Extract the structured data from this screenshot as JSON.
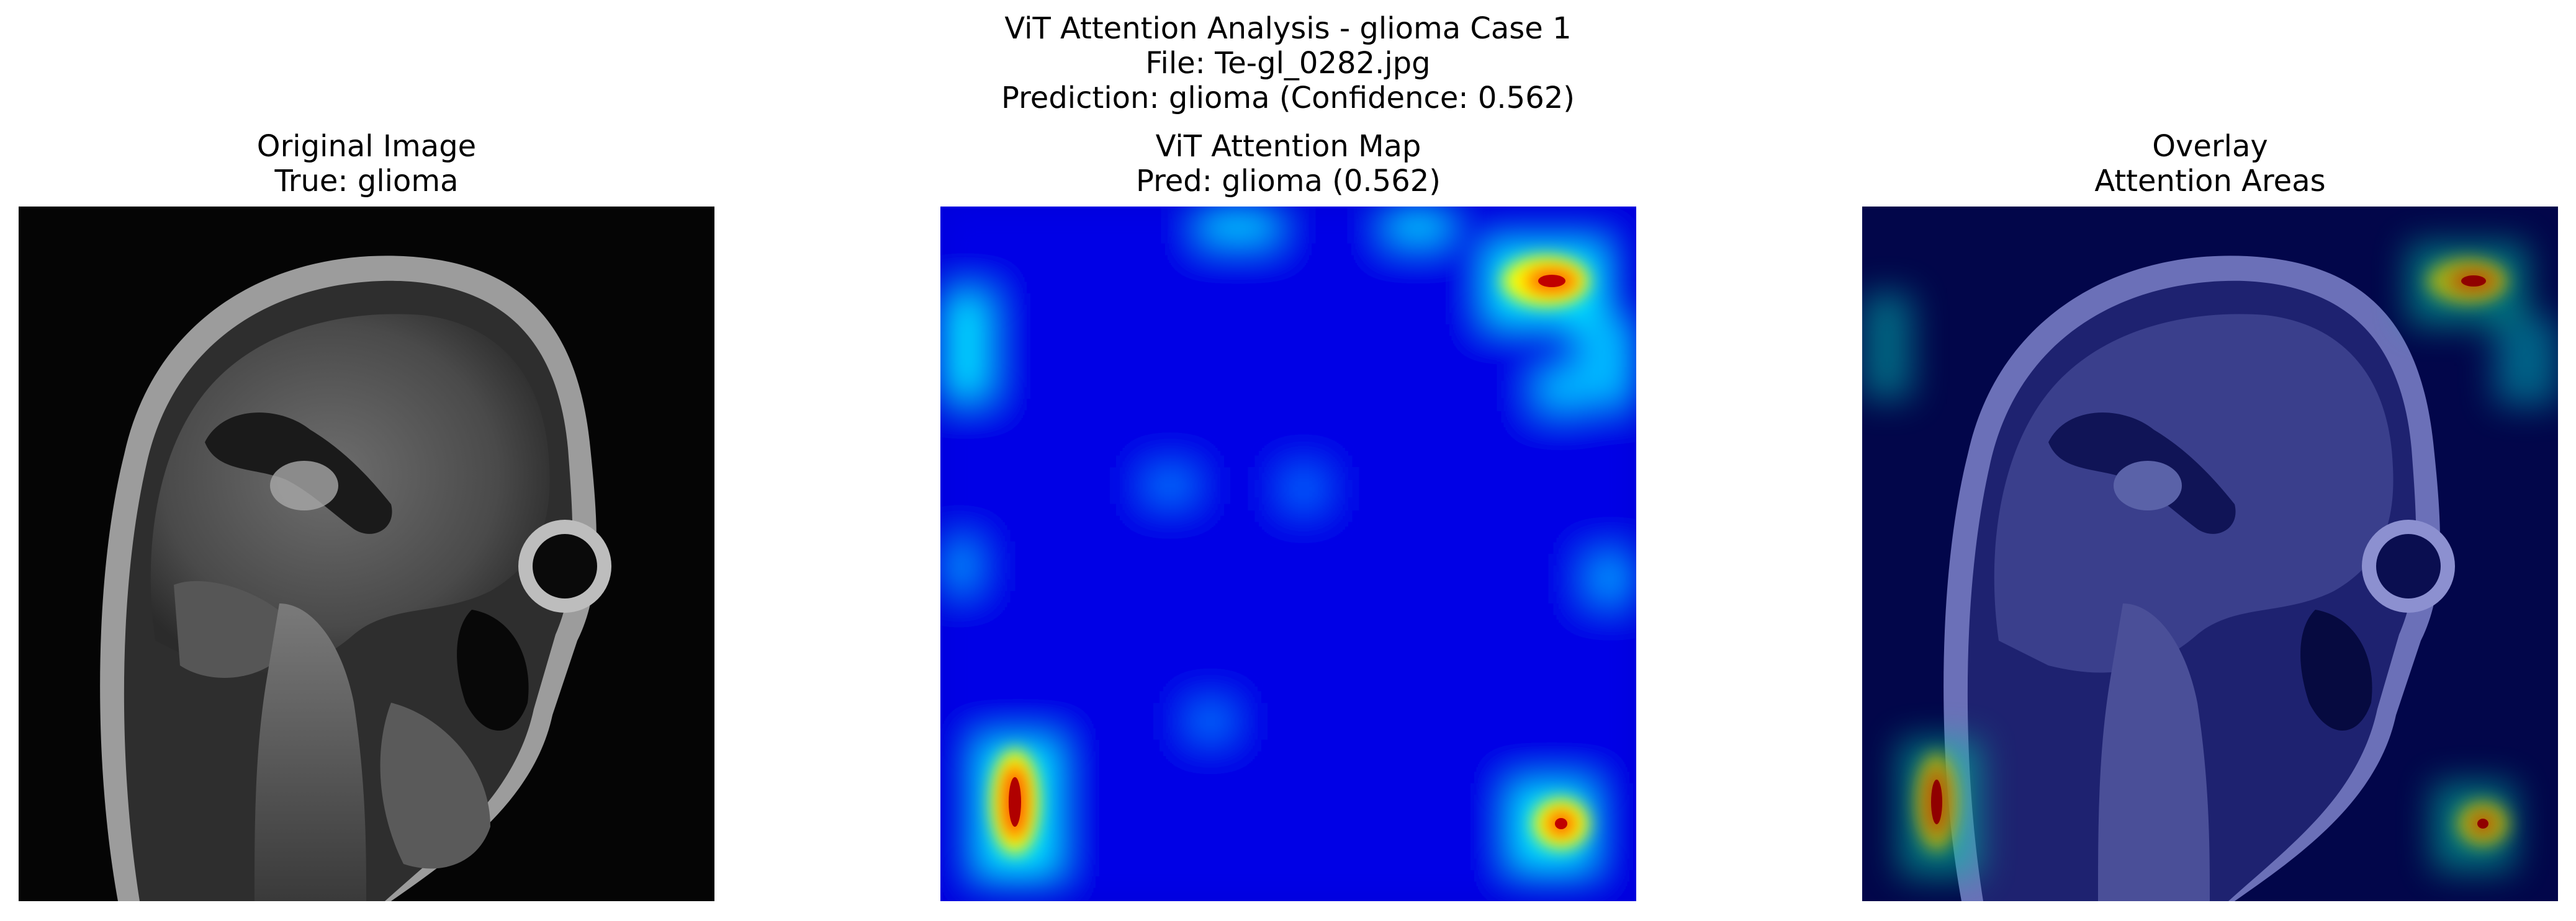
{
  "figure": {
    "suptitle": {
      "line1": "ViT Attention Analysis - glioma Case 1",
      "line2": "File: Te-gl_0282.jpg",
      "line3": "Prediction: glioma (Confidence: 0.562)"
    }
  },
  "panels": [
    {
      "title_line1": "Original Image",
      "title_line2": "True: glioma"
    },
    {
      "title_line1": "ViT Attention Map",
      "title_line2": "Pred: glioma (0.562)"
    },
    {
      "title_line1": "Overlay",
      "title_line2": "Attention Areas"
    }
  ],
  "colors": {
    "jet_low": "#0000cc",
    "jet_mid": "#00e5ff",
    "jet_high": "#ffff00",
    "jet_peak": "#cc0000"
  }
}
